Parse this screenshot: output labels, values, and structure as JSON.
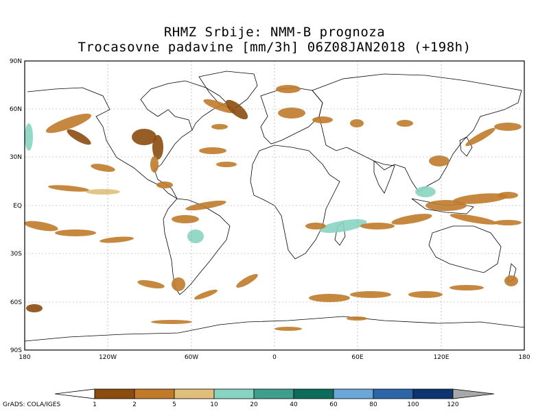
{
  "title": {
    "line1": "RHMZ Srbije: NMM-B prognoza",
    "line2": "Trocasovne padavine [mm/3h] 06Z08JAN2018 (+198h)"
  },
  "axes": {
    "lat_labels": [
      "90N",
      "60N",
      "30N",
      "EQ",
      "30S",
      "60S",
      "90S"
    ],
    "lon_labels": [
      "180",
      "120W",
      "60W",
      "0",
      "60E",
      "120E",
      "180"
    ]
  },
  "colorbar": {
    "ticks": [
      "1",
      "2",
      "5",
      "10",
      "20",
      "40",
      "60",
      "80",
      "100",
      "120"
    ],
    "colors": [
      "#8b4c0e",
      "#c07a2a",
      "#dfbf7a",
      "#88d4c2",
      "#3f9f8e",
      "#0d6d5c",
      "#6aa6d8",
      "#2c66a8",
      "#0e3472",
      "#a8a8a8",
      "#ffffff"
    ]
  },
  "precip_colors": {
    "light": "#c07a2a",
    "dark": "#8b4c0e",
    "pale": "#dfbf7a",
    "teal": "#88d4c2"
  },
  "footer": "GrADS: COLA/IGES"
}
